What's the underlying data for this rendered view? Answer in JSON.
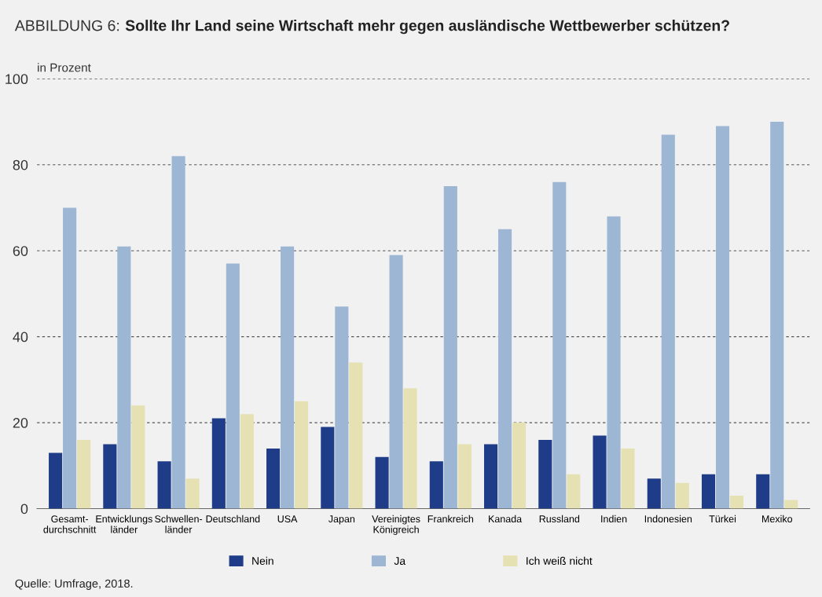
{
  "chart_data": {
    "type": "bar",
    "title": "ABBILDUNG 6:",
    "subtitle": "Sollte Ihr Land seine Wirtschaft mehr gegen ausländische Wettbewerber schützen?",
    "ylabel": "in Prozent",
    "categories": [
      "Gesamt-\ndurchschnitt",
      "Entwicklungs\nländer",
      "Schwellen-\nländer",
      "Deutschland",
      "USA",
      "Japan",
      "Vereinigtes\nKönigreich",
      "Frankreich",
      "Kanada",
      "Russland",
      "Indien",
      "Indonesien",
      "Türkei",
      "Mexiko"
    ],
    "series": [
      {
        "name": "Nein",
        "color": "#1f3c88",
        "values": [
          13,
          15,
          11,
          21,
          14,
          19,
          12,
          11,
          15,
          16,
          17,
          7,
          8,
          8
        ]
      },
      {
        "name": "Ja",
        "color": "#9cb6d3",
        "values": [
          70,
          61,
          82,
          57,
          61,
          47,
          59,
          75,
          65,
          76,
          68,
          87,
          89,
          90
        ]
      },
      {
        "name": "Ich weiß nicht",
        "color": "#e5e1b3",
        "values": [
          16,
          24,
          7,
          22,
          25,
          34,
          28,
          15,
          20,
          8,
          14,
          6,
          3,
          2
        ]
      }
    ],
    "ylim": [
      0,
      100
    ],
    "yticks": [
      0,
      20,
      40,
      60,
      80,
      100
    ],
    "grid": "y",
    "legend": "bottom",
    "annotations": [
      "Quelle: Umfrage, 2018."
    ]
  }
}
